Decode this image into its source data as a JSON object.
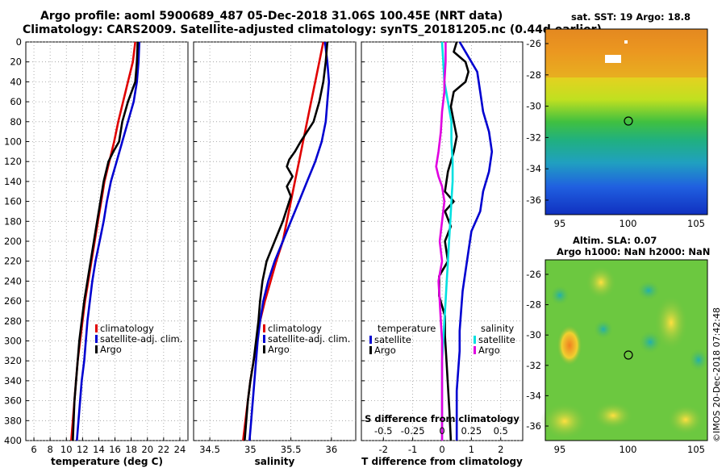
{
  "header": {
    "line1": "Argo profile: aoml 5900689_487 05-Dec-2018 31.06S 100.45E (NRT data)",
    "line2": "Climatology: CARS2009. Satellite-adjusted climatology: synTS_20181205.nc (0.44d earlier)"
  },
  "sst_map": {
    "title": "sat. SST: 19 Argo: 18.8",
    "x_ticks": [
      "95",
      "100",
      "105"
    ],
    "y_ticks": [
      "-26",
      "-28",
      "-30",
      "-32",
      "-34",
      "-36"
    ]
  },
  "sla_map": {
    "title_line1": "Altim. SLA: 0.07",
    "title_line2": "Argo h1000: NaN h2000: NaN",
    "x_ticks": [
      "95",
      "100",
      "105"
    ],
    "y_ticks": [
      "-26",
      "-28",
      "-30",
      "-32",
      "-34",
      "-36"
    ]
  },
  "credit": "©IMOS 20-Dec-2018 07:42:48",
  "colors": {
    "climatology": "#e00000",
    "satellite_adj": "#0000d0",
    "argo": "#000000",
    "salinity_sat": "#00e0e0",
    "salinity_argo": "#e000e0"
  },
  "chart_data": [
    {
      "type": "line",
      "title": "temperature",
      "xlabel": "temperature (deg C)",
      "ylabel": "",
      "xlim": [
        5,
        25
      ],
      "ylim": [
        400,
        0
      ],
      "x_ticks": [
        "6",
        "8",
        "10",
        "12",
        "14",
        "16",
        "18",
        "20",
        "22",
        "24"
      ],
      "x_tick_values": [
        6,
        8,
        10,
        12,
        14,
        16,
        18,
        20,
        22,
        24
      ],
      "y_ticks": [
        "0",
        "20",
        "40",
        "60",
        "80",
        "100",
        "120",
        "140",
        "160",
        "180",
        "200",
        "220",
        "240",
        "260",
        "280",
        "300",
        "320",
        "340",
        "360",
        "380",
        "400"
      ],
      "y_tick_values": [
        0,
        20,
        40,
        60,
        80,
        100,
        120,
        140,
        160,
        180,
        200,
        220,
        240,
        260,
        280,
        300,
        320,
        340,
        360,
        380,
        400
      ],
      "legend": {
        "position": "bottom-right",
        "entries": [
          "climatology",
          "satellite-adj. clim.",
          "Argo"
        ]
      },
      "series": [
        {
          "name": "climatology",
          "color": "#e00000",
          "points": [
            [
              18.5,
              0
            ],
            [
              18.2,
              20
            ],
            [
              17.6,
              40
            ],
            [
              17.0,
              60
            ],
            [
              16.4,
              80
            ],
            [
              15.9,
              100
            ],
            [
              15.3,
              120
            ],
            [
              14.7,
              140
            ],
            [
              14.3,
              160
            ],
            [
              13.9,
              180
            ],
            [
              13.5,
              200
            ],
            [
              13.1,
              220
            ],
            [
              12.7,
              240
            ],
            [
              12.3,
              260
            ],
            [
              12.0,
              280
            ],
            [
              11.7,
              300
            ],
            [
              11.4,
              320
            ],
            [
              11.2,
              340
            ],
            [
              11.0,
              360
            ],
            [
              10.8,
              380
            ],
            [
              10.6,
              400
            ]
          ]
        },
        {
          "name": "satellite-adj. clim.",
          "color": "#0000d0",
          "points": [
            [
              19.0,
              0
            ],
            [
              18.9,
              20
            ],
            [
              18.7,
              40
            ],
            [
              18.3,
              60
            ],
            [
              17.6,
              80
            ],
            [
              16.9,
              100
            ],
            [
              16.2,
              120
            ],
            [
              15.5,
              140
            ],
            [
              15.0,
              160
            ],
            [
              14.6,
              180
            ],
            [
              14.1,
              200
            ],
            [
              13.6,
              220
            ],
            [
              13.2,
              240
            ],
            [
              12.9,
              260
            ],
            [
              12.6,
              280
            ],
            [
              12.4,
              300
            ],
            [
              12.2,
              320
            ],
            [
              11.9,
              340
            ],
            [
              11.7,
              360
            ],
            [
              11.5,
              380
            ],
            [
              11.3,
              400
            ]
          ]
        },
        {
          "name": "Argo",
          "color": "#000000",
          "points": [
            [
              18.8,
              0
            ],
            [
              18.7,
              20
            ],
            [
              18.5,
              40
            ],
            [
              17.6,
              60
            ],
            [
              16.9,
              80
            ],
            [
              16.5,
              100
            ],
            [
              15.8,
              110
            ],
            [
              15.2,
              120
            ],
            [
              14.6,
              140
            ],
            [
              14.2,
              160
            ],
            [
              13.8,
              180
            ],
            [
              13.4,
              200
            ],
            [
              13.0,
              220
            ],
            [
              12.6,
              240
            ],
            [
              12.2,
              260
            ],
            [
              11.9,
              280
            ],
            [
              11.6,
              300
            ],
            [
              11.4,
              320
            ],
            [
              11.2,
              340
            ],
            [
              11.0,
              360
            ],
            [
              10.9,
              380
            ],
            [
              10.8,
              400
            ]
          ]
        }
      ]
    },
    {
      "type": "line",
      "title": "salinity",
      "xlabel": "salinity",
      "ylabel": "",
      "xlim": [
        34.3,
        36.3
      ],
      "ylim": [
        400,
        0
      ],
      "x_ticks": [
        "34.5",
        "35",
        "35.5",
        "36"
      ],
      "x_tick_values": [
        34.5,
        35.0,
        35.5,
        36.0
      ],
      "legend": {
        "position": "bottom-right",
        "entries": [
          "climatology",
          "satellite-adj. clim.",
          "Argo"
        ]
      },
      "series": [
        {
          "name": "climatology",
          "color": "#e00000",
          "points": [
            [
              35.9,
              0
            ],
            [
              35.85,
              20
            ],
            [
              35.8,
              40
            ],
            [
              35.75,
              60
            ],
            [
              35.7,
              80
            ],
            [
              35.65,
              100
            ],
            [
              35.6,
              120
            ],
            [
              35.55,
              140
            ],
            [
              35.5,
              160
            ],
            [
              35.45,
              180
            ],
            [
              35.4,
              200
            ],
            [
              35.32,
              220
            ],
            [
              35.25,
              240
            ],
            [
              35.18,
              260
            ],
            [
              35.12,
              280
            ],
            [
              35.08,
              300
            ],
            [
              35.04,
              320
            ],
            [
              35.0,
              340
            ],
            [
              34.97,
              360
            ],
            [
              34.94,
              380
            ],
            [
              34.91,
              400
            ]
          ]
        },
        {
          "name": "satellite-adj. clim.",
          "color": "#0000d0",
          "points": [
            [
              35.92,
              0
            ],
            [
              35.95,
              20
            ],
            [
              35.97,
              40
            ],
            [
              35.95,
              60
            ],
            [
              35.93,
              80
            ],
            [
              35.88,
              100
            ],
            [
              35.8,
              120
            ],
            [
              35.7,
              140
            ],
            [
              35.6,
              160
            ],
            [
              35.5,
              180
            ],
            [
              35.4,
              200
            ],
            [
              35.3,
              220
            ],
            [
              35.22,
              240
            ],
            [
              35.16,
              260
            ],
            [
              35.12,
              280
            ],
            [
              35.09,
              300
            ],
            [
              35.07,
              320
            ],
            [
              35.05,
              340
            ],
            [
              35.03,
              360
            ],
            [
              35.01,
              380
            ],
            [
              34.99,
              400
            ]
          ]
        },
        {
          "name": "Argo",
          "color": "#000000",
          "points": [
            [
              35.95,
              0
            ],
            [
              35.93,
              20
            ],
            [
              35.9,
              40
            ],
            [
              35.85,
              60
            ],
            [
              35.78,
              80
            ],
            [
              35.7,
              90
            ],
            [
              35.62,
              100
            ],
            [
              35.55,
              110
            ],
            [
              35.48,
              118
            ],
            [
              35.45,
              125
            ],
            [
              35.52,
              135
            ],
            [
              35.45,
              145
            ],
            [
              35.5,
              155
            ],
            [
              35.4,
              180
            ],
            [
              35.3,
              200
            ],
            [
              35.2,
              220
            ],
            [
              35.15,
              240
            ],
            [
              35.12,
              260
            ],
            [
              35.1,
              280
            ],
            [
              35.07,
              300
            ],
            [
              35.04,
              320
            ],
            [
              35.0,
              340
            ],
            [
              34.97,
              360
            ],
            [
              34.95,
              380
            ],
            [
              34.93,
              400
            ]
          ]
        }
      ]
    },
    {
      "type": "line",
      "title": "difference from climatology",
      "xlabel": "T difference from climatology",
      "x2label": "S difference from climatology",
      "xlim": [
        -2.75,
        2.75
      ],
      "ylim": [
        400,
        0
      ],
      "x_ticks": [
        "-2",
        "-1",
        "0",
        "1",
        "2"
      ],
      "x_tick_values": [
        -2,
        -1,
        0,
        1,
        2
      ],
      "x2_ticks": [
        "-0.5",
        "-0.25",
        "0",
        "0.25",
        "0.5"
      ],
      "x2_tick_values": [
        -0.5,
        -0.25,
        0,
        0.25,
        0.5
      ],
      "legend_temperature": {
        "title": "temperature",
        "entries": [
          "satellite",
          "Argo"
        ]
      },
      "legend_salinity": {
        "title": "salinity",
        "entries": [
          "satellite",
          "Argo"
        ]
      },
      "series": [
        {
          "name": "temperature satellite",
          "color": "#0000d0",
          "points": [
            [
              0.6,
              0
            ],
            [
              0.8,
              10
            ],
            [
              1.2,
              30
            ],
            [
              1.3,
              50
            ],
            [
              1.4,
              70
            ],
            [
              1.6,
              90
            ],
            [
              1.7,
              110
            ],
            [
              1.6,
              130
            ],
            [
              1.4,
              150
            ],
            [
              1.3,
              170
            ],
            [
              1.0,
              190
            ],
            [
              0.9,
              210
            ],
            [
              0.8,
              230
            ],
            [
              0.7,
              250
            ],
            [
              0.65,
              270
            ],
            [
              0.6,
              290
            ],
            [
              0.6,
              310
            ],
            [
              0.55,
              330
            ],
            [
              0.5,
              350
            ],
            [
              0.5,
              370
            ],
            [
              0.5,
              400
            ]
          ]
        },
        {
          "name": "temperature Argo",
          "color": "#000000",
          "points": [
            [
              0.5,
              0
            ],
            [
              0.4,
              10
            ],
            [
              0.8,
              20
            ],
            [
              0.9,
              30
            ],
            [
              0.8,
              40
            ],
            [
              0.4,
              50
            ],
            [
              0.3,
              65
            ],
            [
              0.4,
              80
            ],
            [
              0.5,
              95
            ],
            [
              0.4,
              110
            ],
            [
              0.2,
              130
            ],
            [
              0.1,
              150
            ],
            [
              0.4,
              160
            ],
            [
              0.1,
              170
            ],
            [
              0.3,
              185
            ],
            [
              0.1,
              200
            ],
            [
              0.2,
              220
            ],
            [
              -0.1,
              235
            ],
            [
              -0.1,
              255
            ],
            [
              0.1,
              275
            ],
            [
              0.1,
              295
            ],
            [
              0.15,
              320
            ],
            [
              0.2,
              345
            ],
            [
              0.25,
              370
            ],
            [
              0.3,
              400
            ]
          ]
        },
        {
          "name": "salinity satellite",
          "color": "#00e0e0",
          "points": [
            [
              0.0,
              0
            ],
            [
              0.01,
              20
            ],
            [
              0.02,
              40
            ],
            [
              0.05,
              60
            ],
            [
              0.08,
              80
            ],
            [
              0.08,
              100
            ],
            [
              0.09,
              120
            ],
            [
              0.09,
              140
            ],
            [
              0.08,
              160
            ],
            [
              0.07,
              180
            ],
            [
              0.06,
              200
            ],
            [
              0.05,
              220
            ],
            [
              0.04,
              240
            ],
            [
              0.03,
              260
            ],
            [
              0.02,
              280
            ],
            [
              0.01,
              300
            ],
            [
              0.0,
              320
            ],
            [
              0.0,
              340
            ],
            [
              0.0,
              360
            ],
            [
              0.0,
              380
            ],
            [
              0.0,
              400
            ]
          ]
        },
        {
          "name": "salinity Argo",
          "color": "#e000e0",
          "points": [
            [
              0.03,
              0
            ],
            [
              0.03,
              20
            ],
            [
              0.02,
              40
            ],
            [
              0.02,
              50
            ],
            [
              0.0,
              70
            ],
            [
              -0.01,
              90
            ],
            [
              -0.03,
              110
            ],
            [
              -0.05,
              125
            ],
            [
              -0.03,
              135
            ],
            [
              0.0,
              145
            ],
            [
              0.02,
              160
            ],
            [
              0.0,
              180
            ],
            [
              -0.02,
              200
            ],
            [
              0.0,
              220
            ],
            [
              -0.03,
              240
            ],
            [
              -0.02,
              260
            ],
            [
              -0.01,
              280
            ],
            [
              0.0,
              300
            ],
            [
              0.0,
              320
            ],
            [
              0.0,
              340
            ],
            [
              0.0,
              360
            ],
            [
              0.0,
              380
            ],
            [
              0.0,
              400
            ]
          ]
        }
      ]
    }
  ]
}
